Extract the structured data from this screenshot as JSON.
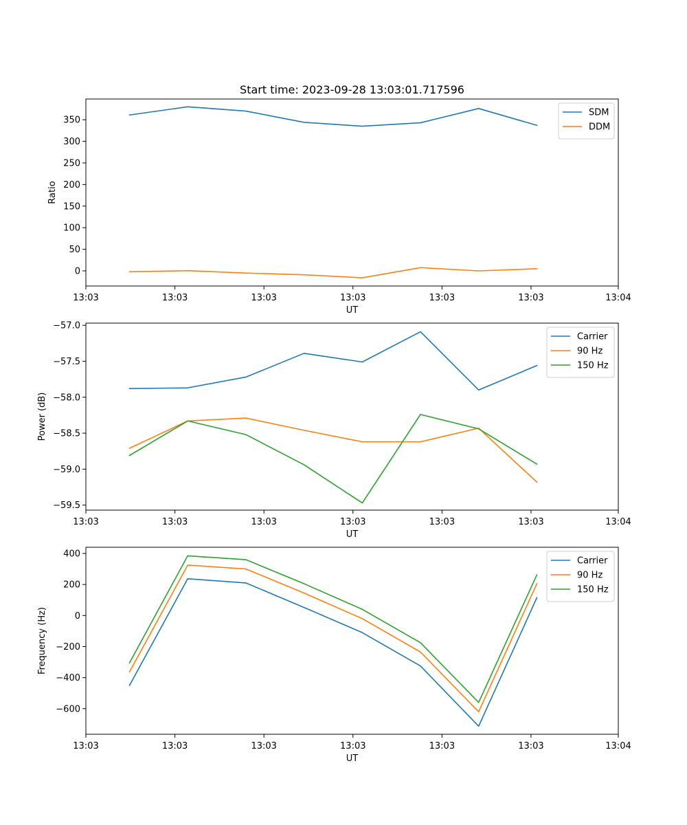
{
  "figure_title": "Start time: 2023-09-28 13:03:01.717596",
  "colors": {
    "blue": "#1f77b4",
    "orange": "#ff7f0e",
    "green": "#2ca02c"
  },
  "chart_data": [
    {
      "type": "line",
      "title": "Start time: 2023-09-28 13:03:01.717596",
      "xlabel": "UT",
      "ylabel": "Ratio",
      "xlim": [
        -0.75,
        8.4
      ],
      "ylim": [
        -35,
        398
      ],
      "x": [
        0,
        1,
        2,
        3,
        4,
        5,
        6,
        7
      ],
      "x_ticks": [
        -0.75,
        0.78,
        2.31,
        3.84,
        5.37,
        6.9,
        8.4
      ],
      "x_tick_labels": [
        "13:03",
        "13:03",
        "13:03",
        "13:03",
        "13:03",
        "13:03",
        "13:04"
      ],
      "y_ticks": [
        0,
        50,
        100,
        150,
        200,
        250,
        300,
        350
      ],
      "y_tick_labels": [
        "0",
        "50",
        "100",
        "150",
        "200",
        "250",
        "300",
        "350"
      ],
      "legend_position": "top-right",
      "series": [
        {
          "name": "SDM",
          "color": "#1f77b4",
          "values": [
            361,
            380,
            370,
            344,
            335,
            343,
            376,
            337
          ]
        },
        {
          "name": "DDM",
          "color": "#ff7f0e",
          "values": [
            -2,
            0.5,
            -5,
            -9,
            -16,
            7.5,
            0,
            5
          ]
        }
      ]
    },
    {
      "type": "line",
      "xlabel": "UT",
      "ylabel": "Power (dB)",
      "xlim": [
        -0.75,
        8.4
      ],
      "ylim": [
        -59.57,
        -56.97
      ],
      "x": [
        0,
        1,
        2,
        3,
        4,
        5,
        6,
        7
      ],
      "x_ticks": [
        -0.75,
        0.78,
        2.31,
        3.84,
        5.37,
        6.9,
        8.4
      ],
      "x_tick_labels": [
        "13:03",
        "13:03",
        "13:03",
        "13:03",
        "13:03",
        "13:03",
        "13:04"
      ],
      "y_ticks": [
        -59.5,
        -59.0,
        -58.5,
        -58.0,
        -57.5,
        -57.0
      ],
      "y_tick_labels": [
        "−59.5",
        "−59.0",
        "−58.5",
        "−58.0",
        "−57.5",
        "−57.0"
      ],
      "legend_position": "top-right",
      "series": [
        {
          "name": "Carrier",
          "color": "#1f77b4",
          "values": [
            -57.88,
            -57.87,
            -57.72,
            -57.39,
            -57.51,
            -57.09,
            -57.9,
            -57.56
          ]
        },
        {
          "name": "90 Hz",
          "color": "#ff7f0e",
          "values": [
            -58.71,
            -58.33,
            -58.29,
            -58.46,
            -58.62,
            -58.62,
            -58.43,
            -59.18
          ]
        },
        {
          "name": "150 Hz",
          "color": "#2ca02c",
          "values": [
            -58.81,
            -58.33,
            -58.52,
            -58.94,
            -59.47,
            -58.24,
            -58.44,
            -58.93
          ]
        }
      ]
    },
    {
      "type": "line",
      "xlabel": "UT",
      "ylabel": "Frequency (Hz)",
      "xlim": [
        -0.75,
        8.4
      ],
      "ylim": [
        -765,
        440
      ],
      "x": [
        0,
        1,
        2,
        3,
        4,
        5,
        6,
        7
      ],
      "x_ticks": [
        -0.75,
        0.78,
        2.31,
        3.84,
        5.37,
        6.9,
        8.4
      ],
      "x_tick_labels": [
        "13:03",
        "13:03",
        "13:03",
        "13:03",
        "13:03",
        "13:03",
        "13:04"
      ],
      "y_ticks": [
        -600,
        -400,
        -200,
        0,
        200,
        400
      ],
      "y_tick_labels": [
        "−600",
        "−400",
        "−200",
        "0",
        "200",
        "400"
      ],
      "legend_position": "top-right",
      "series": [
        {
          "name": "Carrier",
          "color": "#1f77b4",
          "values": [
            -450,
            237,
            210,
            52,
            -110,
            -325,
            -713,
            115
          ]
        },
        {
          "name": "90 Hz",
          "color": "#ff7f0e",
          "values": [
            -363,
            325,
            300,
            145,
            -20,
            -235,
            -620,
            205
          ]
        },
        {
          "name": "150 Hz",
          "color": "#2ca02c",
          "values": [
            -305,
            385,
            360,
            205,
            40,
            -175,
            -560,
            262
          ]
        }
      ]
    }
  ]
}
